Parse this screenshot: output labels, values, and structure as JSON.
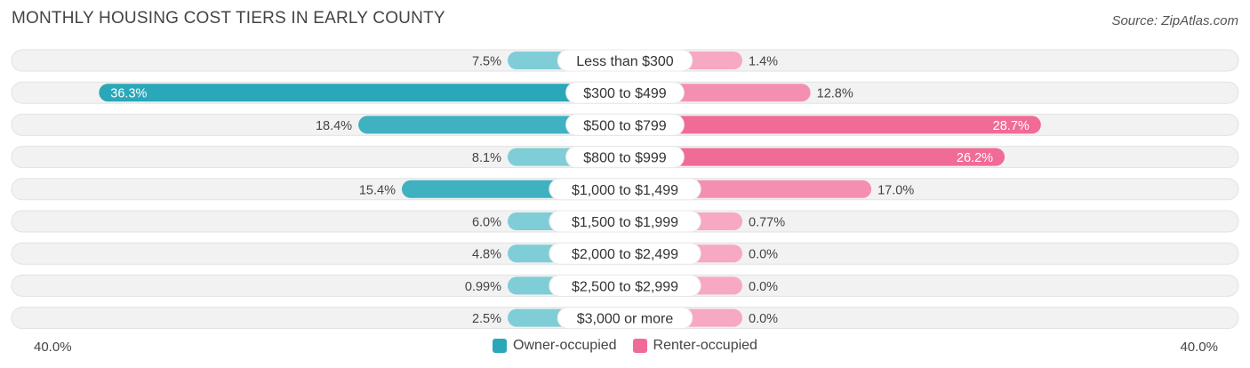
{
  "title": "MONTHLY HOUSING COST TIERS IN EARLY COUNTY",
  "source": "Source: ZipAtlas.com",
  "colors": {
    "owner": "#2aa7b8",
    "owner_light": "#7fcdd6",
    "renter": "#f06b95",
    "renter_light": "#f7a8c2",
    "row_bg": "#f1f1f1"
  },
  "legend": {
    "owner_label": "Owner-occupied",
    "renter_label": "Renter-occupied"
  },
  "axis": {
    "left_label": "40.0%",
    "right_label": "40.0%"
  },
  "chart_data": {
    "type": "bar",
    "orientation": "diverging-horizontal",
    "title": "MONTHLY HOUSING COST TIERS IN EARLY COUNTY",
    "xlim": [
      -40,
      40
    ],
    "categories": [
      "Less than $300",
      "$300 to $499",
      "$500 to $799",
      "$800 to $999",
      "$1,000 to $1,499",
      "$1,500 to $1,999",
      "$2,000 to $2,499",
      "$2,500 to $2,999",
      "$3,000 or more"
    ],
    "series": [
      {
        "name": "Owner-occupied",
        "values": [
          7.5,
          36.3,
          18.4,
          8.1,
          15.4,
          6.0,
          4.8,
          0.99,
          2.5
        ],
        "labels": [
          "7.5%",
          "36.3%",
          "18.4%",
          "8.1%",
          "15.4%",
          "6.0%",
          "4.8%",
          "0.99%",
          "2.5%"
        ]
      },
      {
        "name": "Renter-occupied",
        "values": [
          1.4,
          12.8,
          28.7,
          26.2,
          17.0,
          0.77,
          0.0,
          0.0,
          0.0
        ],
        "labels": [
          "1.4%",
          "12.8%",
          "28.7%",
          "26.2%",
          "17.0%",
          "0.77%",
          "0.0%",
          "0.0%",
          "0.0%"
        ]
      }
    ]
  }
}
